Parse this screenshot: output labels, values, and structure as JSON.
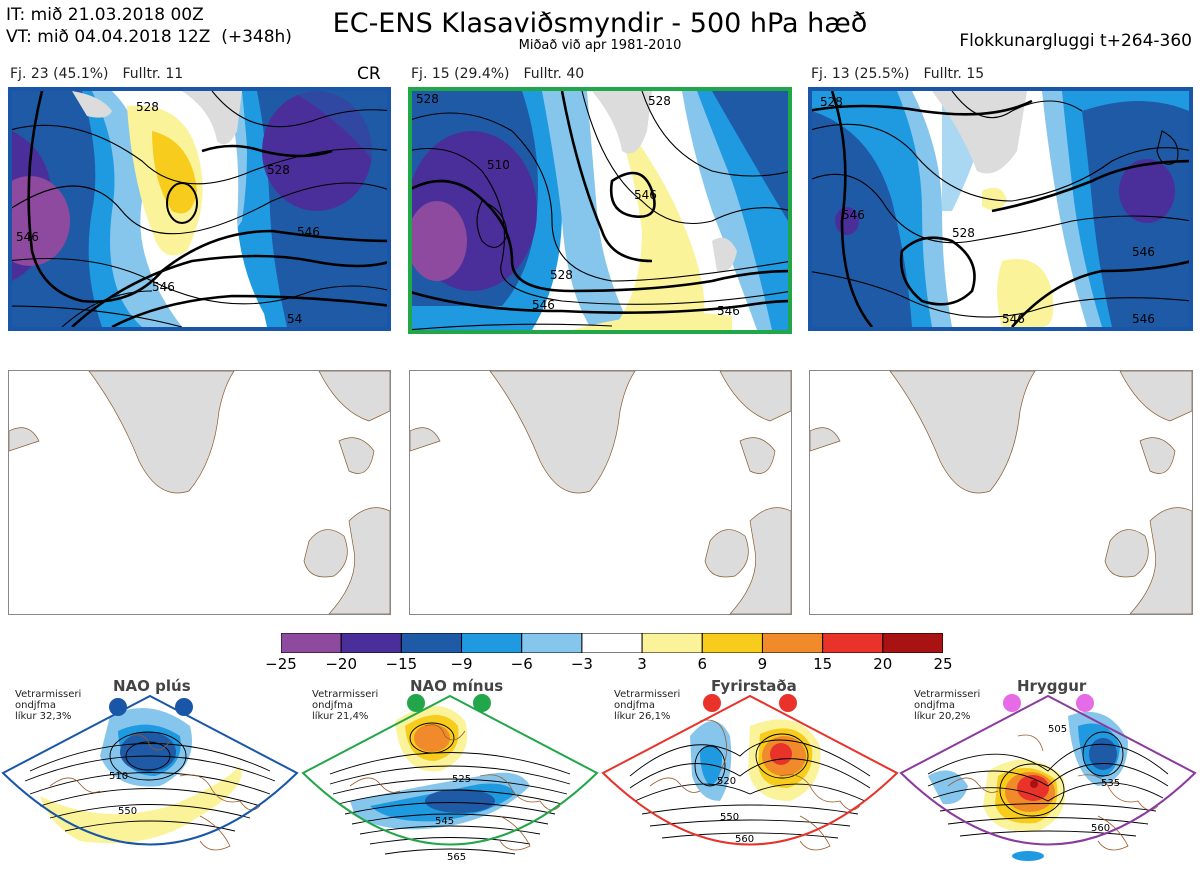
{
  "header": {
    "it_line": "IT: mið 21.03.2018 00Z",
    "vt_line": "VT: mið 04.04.2018 12Z  (+348h)",
    "title": "EC-ENS Klasaviðsmyndir - 500 hPa hæð",
    "subtitle": "Miðað við apr 1981-2010",
    "window_label": "Flokkunargluggi t+264-360"
  },
  "clusters": [
    {
      "count_label": "Fj. 23 (45.1%)",
      "rep_label": "Fulltr. 11",
      "tag": "CR",
      "frame_color": "#1a56a8",
      "contour_labels": [
        "546",
        "528",
        "546",
        "546",
        "528",
        "54"
      ]
    },
    {
      "count_label": "Fj. 15 (29.4%)",
      "rep_label": "Fulltr. 40",
      "tag": "",
      "frame_color": "#22a64a",
      "contour_labels": [
        "528",
        "510",
        "546",
        "528",
        "546",
        "546",
        "528"
      ]
    },
    {
      "count_label": "Fj. 13 (25.5%)",
      "rep_label": "Fulltr. 15",
      "tag": "",
      "frame_color": "#1a56a8",
      "contour_labels": [
        "528",
        "546",
        "528",
        "546",
        "546",
        "546"
      ]
    }
  ],
  "colorbar": {
    "ticks": [
      "−25",
      "−20",
      "−15",
      "−9",
      "−6",
      "−3",
      "3",
      "6",
      "9",
      "15",
      "20",
      "25"
    ],
    "colors": [
      "#8d4a9e",
      "#4a2f9a",
      "#1f5aa6",
      "#1f9ae0",
      "#86c6ec",
      "#ffffff",
      "#fbf39a",
      "#f7cc1d",
      "#f08a2a",
      "#e8322a",
      "#a81212"
    ]
  },
  "regimes": [
    {
      "name": "NAO plús",
      "info": [
        "Vetrarmisseri",
        "ondjfma",
        "líkur 32,3%"
      ],
      "color": "#1a56a8",
      "contours": [
        "510",
        "550"
      ]
    },
    {
      "name": "NAO mínus",
      "info": [
        "Vetrarmisseri",
        "ondjfma",
        "líkur 21,4%"
      ],
      "color": "#22a64a",
      "contours": [
        "525",
        "545",
        "565"
      ]
    },
    {
      "name": "Fyrirstaða",
      "info": [
        "Vetrarmisseri",
        "ondjfma",
        "líkur 26,1%"
      ],
      "color": "#e8322a",
      "contours": [
        "520",
        "550",
        "560"
      ]
    },
    {
      "name": "Hryggur",
      "info": [
        "Vetrarmisseri",
        "ondjfma",
        "líkur 20,2%"
      ],
      "color": "#8b3a9e",
      "contours": [
        "505",
        "535",
        "560"
      ]
    }
  ]
}
